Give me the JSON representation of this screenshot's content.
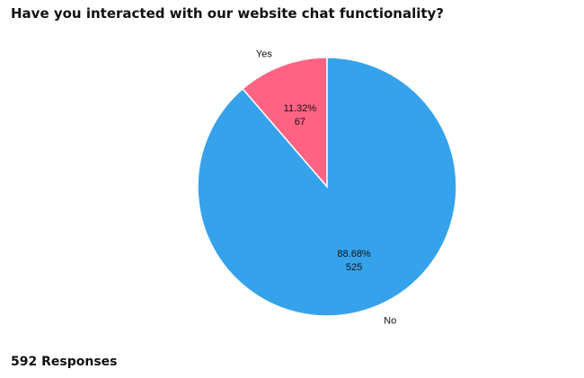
{
  "survey": {
    "question": "Have you interacted with our website chat functionality?",
    "responses_label": "592 Responses"
  },
  "chart_data": {
    "type": "pie",
    "title": "Have you interacted with our website chat functionality?",
    "slices": [
      {
        "label": "Yes",
        "value": 67,
        "percent_label": "11.32%",
        "count_label": "67",
        "color": "#ff6384"
      },
      {
        "label": "No",
        "value": 525,
        "percent_label": "88.68%",
        "count_label": "525",
        "color": "#36a2eb"
      }
    ],
    "start": "top",
    "direction": "counter-clockwise",
    "legend": "none"
  }
}
